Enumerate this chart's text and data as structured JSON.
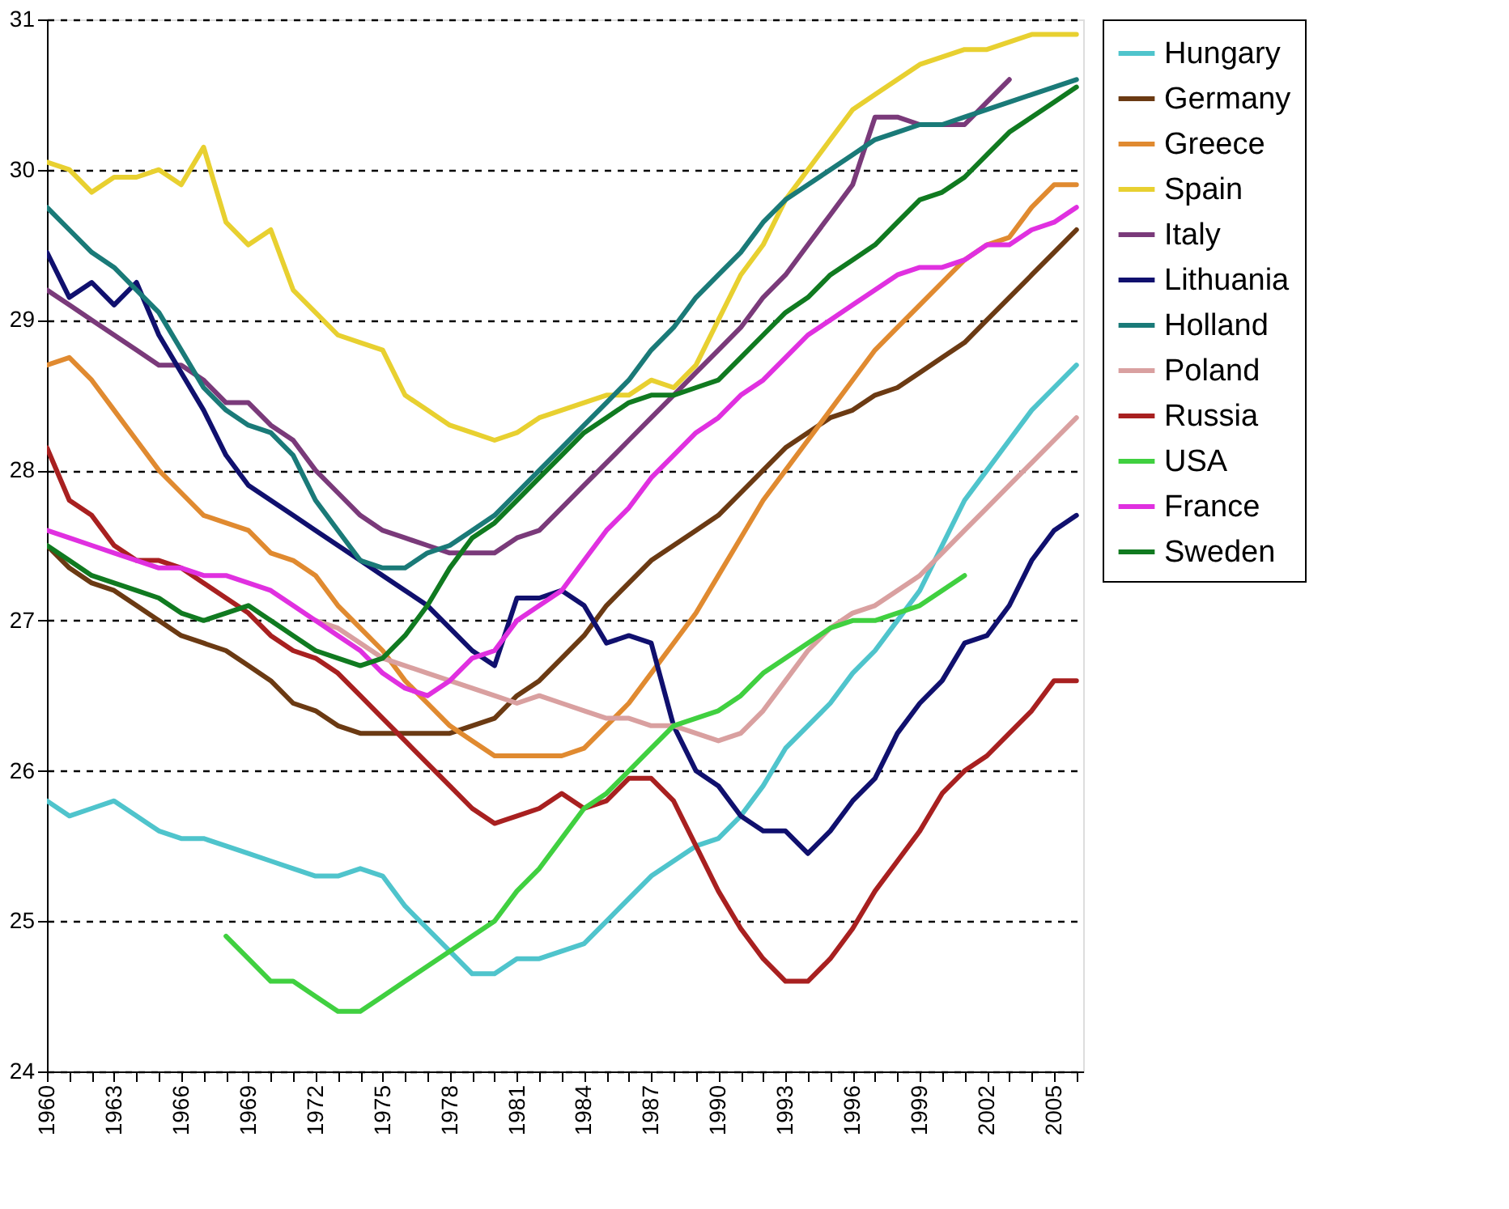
{
  "chart_data": {
    "type": "line",
    "x": [
      1960,
      1961,
      1962,
      1963,
      1964,
      1965,
      1966,
      1967,
      1968,
      1969,
      1970,
      1971,
      1972,
      1973,
      1974,
      1975,
      1976,
      1977,
      1978,
      1979,
      1980,
      1981,
      1982,
      1983,
      1984,
      1985,
      1986,
      1987,
      1988,
      1989,
      1990,
      1991,
      1992,
      1993,
      1994,
      1995,
      1996,
      1997,
      1998,
      1999,
      2000,
      2001,
      2002,
      2003,
      2004,
      2005,
      2006
    ],
    "series": [
      {
        "name": "Hungary",
        "color": "#4fc4cc",
        "values": [
          25.8,
          25.7,
          25.75,
          25.8,
          25.7,
          25.6,
          25.55,
          25.55,
          25.5,
          25.45,
          25.4,
          25.35,
          25.3,
          25.3,
          25.35,
          25.3,
          25.1,
          24.95,
          24.8,
          24.65,
          24.65,
          24.75,
          24.75,
          24.8,
          24.85,
          25.0,
          25.15,
          25.3,
          25.4,
          25.5,
          25.55,
          25.7,
          25.9,
          26.15,
          26.3,
          26.45,
          26.65,
          26.8,
          27.0,
          27.2,
          27.5,
          27.8,
          28.0,
          28.2,
          28.4,
          28.55,
          28.7
        ]
      },
      {
        "name": "Germany",
        "color": "#6b3a13",
        "values": [
          27.5,
          27.35,
          27.25,
          27.2,
          27.1,
          27.0,
          26.9,
          26.85,
          26.8,
          26.7,
          26.6,
          26.45,
          26.4,
          26.3,
          26.25,
          26.25,
          26.25,
          26.25,
          26.25,
          26.3,
          26.35,
          26.5,
          26.6,
          26.75,
          26.9,
          27.1,
          27.25,
          27.4,
          27.5,
          27.6,
          27.7,
          27.85,
          28.0,
          28.15,
          28.25,
          28.35,
          28.4,
          28.5,
          28.55,
          28.65,
          28.75,
          28.85,
          29.0,
          29.15,
          29.3,
          29.45,
          29.6
        ]
      },
      {
        "name": "Greece",
        "color": "#e08a30",
        "values": [
          28.7,
          28.75,
          28.6,
          28.4,
          28.2,
          28.0,
          27.85,
          27.7,
          27.65,
          27.6,
          27.45,
          27.4,
          27.3,
          27.1,
          26.95,
          26.8,
          26.6,
          26.45,
          26.3,
          26.2,
          26.1,
          26.1,
          26.1,
          26.1,
          26.15,
          26.3,
          26.45,
          26.65,
          26.85,
          27.05,
          27.3,
          27.55,
          27.8,
          28.0,
          28.2,
          28.4,
          28.6,
          28.8,
          28.95,
          29.1,
          29.25,
          29.4,
          29.5,
          29.55,
          29.75,
          29.9,
          29.9
        ]
      },
      {
        "name": "Spain",
        "color": "#e8d030",
        "values": [
          30.05,
          30.0,
          29.85,
          29.95,
          29.95,
          30.0,
          29.9,
          30.15,
          29.65,
          29.5,
          29.6,
          29.2,
          29.05,
          28.9,
          28.85,
          28.8,
          28.5,
          28.4,
          28.3,
          28.25,
          28.2,
          28.25,
          28.35,
          28.4,
          28.45,
          28.5,
          28.5,
          28.6,
          28.55,
          28.7,
          29.0,
          29.3,
          29.5,
          29.8,
          30.0,
          30.2,
          30.4,
          30.5,
          30.6,
          30.7,
          30.75,
          30.8,
          30.8,
          30.85,
          30.9,
          30.9,
          30.9
        ]
      },
      {
        "name": "Italy",
        "color": "#7a3a7a",
        "values": [
          29.2,
          29.1,
          29.0,
          28.9,
          28.8,
          28.7,
          28.7,
          28.6,
          28.45,
          28.45,
          28.3,
          28.2,
          28.0,
          27.85,
          27.7,
          27.6,
          27.55,
          27.5,
          27.45,
          27.45,
          27.45,
          27.55,
          27.6,
          27.75,
          27.9,
          28.05,
          28.2,
          28.35,
          28.5,
          28.65,
          28.8,
          28.95,
          29.15,
          29.3,
          29.5,
          29.7,
          29.9,
          30.35,
          30.35,
          30.3,
          30.3,
          30.3,
          30.45,
          30.6,
          null,
          null,
          null
        ]
      },
      {
        "name": "Lithuania",
        "color": "#10106e",
        "values": [
          29.45,
          29.15,
          29.25,
          29.1,
          29.25,
          28.9,
          28.65,
          28.4,
          28.1,
          27.9,
          27.8,
          27.7,
          27.6,
          27.5,
          27.4,
          27.3,
          27.2,
          27.1,
          26.95,
          26.8,
          26.7,
          27.15,
          27.15,
          27.2,
          27.1,
          26.85,
          26.9,
          26.85,
          26.3,
          26.0,
          25.9,
          25.7,
          25.6,
          25.6,
          25.45,
          25.6,
          25.8,
          25.95,
          26.25,
          26.45,
          26.6,
          26.85,
          26.9,
          27.1,
          27.4,
          27.6,
          27.7
        ]
      },
      {
        "name": "Holland",
        "color": "#1a7a78",
        "values": [
          29.75,
          29.6,
          29.45,
          29.35,
          29.2,
          29.05,
          28.8,
          28.55,
          28.4,
          28.3,
          28.25,
          28.1,
          27.8,
          27.6,
          27.4,
          27.35,
          27.35,
          27.45,
          27.5,
          27.6,
          27.7,
          27.85,
          28.0,
          28.15,
          28.3,
          28.45,
          28.6,
          28.8,
          28.95,
          29.15,
          29.3,
          29.45,
          29.65,
          29.8,
          29.9,
          30.0,
          30.1,
          30.2,
          30.25,
          30.3,
          30.3,
          30.35,
          30.4,
          30.45,
          30.5,
          30.55,
          30.6
        ]
      },
      {
        "name": "Poland",
        "color": "#d9a0a0",
        "values": [
          null,
          null,
          null,
          null,
          null,
          null,
          null,
          null,
          null,
          null,
          null,
          null,
          27.0,
          26.95,
          26.85,
          26.75,
          26.7,
          26.65,
          26.6,
          26.55,
          26.5,
          26.45,
          26.5,
          26.45,
          26.4,
          26.35,
          26.35,
          26.3,
          26.3,
          26.25,
          26.2,
          26.25,
          26.4,
          26.6,
          26.8,
          26.95,
          27.05,
          27.1,
          27.2,
          27.3,
          27.45,
          27.6,
          27.75,
          27.9,
          28.05,
          28.2,
          28.35
        ]
      },
      {
        "name": "Russia",
        "color": "#a82020",
        "values": [
          28.15,
          27.8,
          27.7,
          27.5,
          27.4,
          27.4,
          27.35,
          27.25,
          27.15,
          27.05,
          26.9,
          26.8,
          26.75,
          26.65,
          26.5,
          26.35,
          26.2,
          26.05,
          25.9,
          25.75,
          25.65,
          25.7,
          25.75,
          25.85,
          25.75,
          25.8,
          25.95,
          25.95,
          25.8,
          25.5,
          25.2,
          24.95,
          24.75,
          24.6,
          24.6,
          24.75,
          24.95,
          25.2,
          25.4,
          25.6,
          25.85,
          26.0,
          26.1,
          26.25,
          26.4,
          26.6,
          26.6
        ]
      },
      {
        "name": "USA",
        "color": "#40d040",
        "values": [
          null,
          null,
          null,
          null,
          null,
          null,
          null,
          null,
          24.9,
          24.75,
          24.6,
          24.6,
          24.5,
          24.4,
          24.4,
          24.5,
          24.6,
          24.7,
          24.8,
          24.9,
          25.0,
          25.2,
          25.35,
          25.55,
          25.75,
          25.85,
          26.0,
          26.15,
          26.3,
          26.35,
          26.4,
          26.5,
          26.65,
          26.75,
          26.85,
          26.95,
          27.0,
          27.0,
          27.05,
          27.1,
          27.2,
          27.3,
          null,
          null,
          null,
          null,
          null
        ]
      },
      {
        "name": "France",
        "color": "#e030e0",
        "values": [
          27.6,
          27.55,
          27.5,
          27.45,
          27.4,
          27.35,
          27.35,
          27.3,
          27.3,
          27.25,
          27.2,
          27.1,
          27.0,
          26.9,
          26.8,
          26.65,
          26.55,
          26.5,
          26.6,
          26.75,
          26.8,
          27.0,
          27.1,
          27.2,
          27.4,
          27.6,
          27.75,
          27.95,
          28.1,
          28.25,
          28.35,
          28.5,
          28.6,
          28.75,
          28.9,
          29.0,
          29.1,
          29.2,
          29.3,
          29.35,
          29.35,
          29.4,
          29.5,
          29.5,
          29.6,
          29.65,
          29.75
        ]
      },
      {
        "name": "Sweden",
        "color": "#107a20",
        "values": [
          27.5,
          27.4,
          27.3,
          27.25,
          27.2,
          27.15,
          27.05,
          27.0,
          27.05,
          27.1,
          27.0,
          26.9,
          26.8,
          26.75,
          26.7,
          26.75,
          26.9,
          27.1,
          27.35,
          27.55,
          27.65,
          27.8,
          27.95,
          28.1,
          28.25,
          28.35,
          28.45,
          28.5,
          28.5,
          28.55,
          28.6,
          28.75,
          28.9,
          29.05,
          29.15,
          29.3,
          29.4,
          29.5,
          29.65,
          29.8,
          29.85,
          29.95,
          30.1,
          30.25,
          30.35,
          30.45,
          30.55
        ]
      }
    ],
    "xlim": [
      1960,
      2006.3
    ],
    "xticks": [
      {
        "value": 1960,
        "label": "1960"
      },
      {
        "value": 1961,
        "label": null
      },
      {
        "value": 1962,
        "label": null
      },
      {
        "value": 1963,
        "label": "1963"
      },
      {
        "value": 1964,
        "label": null
      },
      {
        "value": 1965,
        "label": null
      },
      {
        "value": 1966,
        "label": "1966"
      },
      {
        "value": 1967,
        "label": null
      },
      {
        "value": 1968,
        "label": null
      },
      {
        "value": 1969,
        "label": "1969"
      },
      {
        "value": 1970,
        "label": null
      },
      {
        "value": 1971,
        "label": null
      },
      {
        "value": 1972,
        "label": "1972"
      },
      {
        "value": 1973,
        "label": null
      },
      {
        "value": 1974,
        "label": null
      },
      {
        "value": 1975,
        "label": "1975"
      },
      {
        "value": 1976,
        "label": null
      },
      {
        "value": 1977,
        "label": null
      },
      {
        "value": 1978,
        "label": "1978"
      },
      {
        "value": 1979,
        "label": null
      },
      {
        "value": 1980,
        "label": null
      },
      {
        "value": 1981,
        "label": "1981"
      },
      {
        "value": 1982,
        "label": null
      },
      {
        "value": 1983,
        "label": null
      },
      {
        "value": 1984,
        "label": "1984"
      },
      {
        "value": 1985,
        "label": null
      },
      {
        "value": 1986,
        "label": null
      },
      {
        "value": 1987,
        "label": "1987"
      },
      {
        "value": 1988,
        "label": null
      },
      {
        "value": 1989,
        "label": null
      },
      {
        "value": 1990,
        "label": "1990"
      },
      {
        "value": 1991,
        "label": null
      },
      {
        "value": 1992,
        "label": null
      },
      {
        "value": 1993,
        "label": "1993"
      },
      {
        "value": 1994,
        "label": null
      },
      {
        "value": 1995,
        "label": null
      },
      {
        "value": 1996,
        "label": "1996"
      },
      {
        "value": 1997,
        "label": null
      },
      {
        "value": 1998,
        "label": null
      },
      {
        "value": 1999,
        "label": "1999"
      },
      {
        "value": 2000,
        "label": null
      },
      {
        "value": 2001,
        "label": null
      },
      {
        "value": 2002,
        "label": "2002"
      },
      {
        "value": 2003,
        "label": null
      },
      {
        "value": 2004,
        "label": null
      },
      {
        "value": 2005,
        "label": "2005"
      },
      {
        "value": 2006,
        "label": null
      }
    ],
    "ylim": [
      24,
      31
    ],
    "yticks": [
      24,
      25,
      26,
      27,
      28,
      29,
      30,
      31
    ],
    "grid": "y",
    "legend": "right",
    "marker": "none",
    "line_style": "solid"
  }
}
